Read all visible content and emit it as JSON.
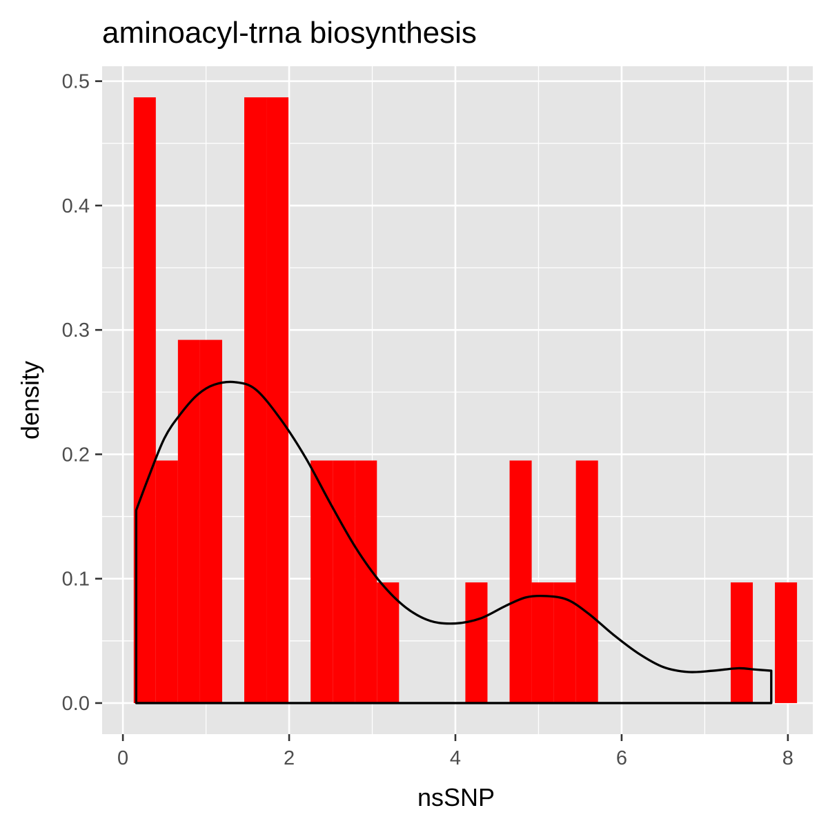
{
  "chart_data": {
    "type": "histogram",
    "title": "aminoacyl-trna biosynthesis",
    "xlabel": "nsSNP",
    "ylabel": "density",
    "xlim": [
      -0.25,
      8.3
    ],
    "ylim": [
      -0.025,
      0.512
    ],
    "x_ticks": [
      "0",
      "2",
      "4",
      "6",
      "8"
    ],
    "y_ticks": [
      "0.0",
      "0.1",
      "0.2",
      "0.3",
      "0.4",
      "0.5"
    ],
    "grid": true,
    "background": "#e5e5e5",
    "bar_fill": "#ff0000",
    "density_line_color": "#000000",
    "histogram": {
      "bin_width": 0.266,
      "bins": [
        {
          "x0": 0.13,
          "x1": 0.396,
          "density": 0.487
        },
        {
          "x0": 0.396,
          "x1": 0.662,
          "density": 0.195
        },
        {
          "x0": 0.662,
          "x1": 0.928,
          "density": 0.292
        },
        {
          "x0": 0.928,
          "x1": 1.194,
          "density": 0.292
        },
        {
          "x0": 1.194,
          "x1": 1.46,
          "density": 0.0
        },
        {
          "x0": 1.46,
          "x1": 1.726,
          "density": 0.487
        },
        {
          "x0": 1.726,
          "x1": 1.992,
          "density": 0.487
        },
        {
          "x0": 1.992,
          "x1": 2.258,
          "density": 0.0
        },
        {
          "x0": 2.258,
          "x1": 2.524,
          "density": 0.195
        },
        {
          "x0": 2.524,
          "x1": 2.79,
          "density": 0.195
        },
        {
          "x0": 2.79,
          "x1": 3.056,
          "density": 0.195
        },
        {
          "x0": 3.056,
          "x1": 3.322,
          "density": 0.097
        },
        {
          "x0": 3.322,
          "x1": 3.588,
          "density": 0.0
        },
        {
          "x0": 3.588,
          "x1": 3.854,
          "density": 0.0
        },
        {
          "x0": 3.854,
          "x1": 4.12,
          "density": 0.0
        },
        {
          "x0": 4.12,
          "x1": 4.386,
          "density": 0.097
        },
        {
          "x0": 4.386,
          "x1": 4.652,
          "density": 0.0
        },
        {
          "x0": 4.652,
          "x1": 4.918,
          "density": 0.195
        },
        {
          "x0": 4.918,
          "x1": 5.184,
          "density": 0.097
        },
        {
          "x0": 5.184,
          "x1": 5.45,
          "density": 0.097
        },
        {
          "x0": 5.45,
          "x1": 5.716,
          "density": 0.195
        },
        {
          "x0": 5.716,
          "x1": 5.982,
          "density": 0.0
        },
        {
          "x0": 5.982,
          "x1": 6.248,
          "density": 0.0
        },
        {
          "x0": 6.248,
          "x1": 6.514,
          "density": 0.0
        },
        {
          "x0": 6.514,
          "x1": 6.78,
          "density": 0.0
        },
        {
          "x0": 6.78,
          "x1": 7.046,
          "density": 0.0
        },
        {
          "x0": 7.046,
          "x1": 7.312,
          "density": 0.0
        },
        {
          "x0": 7.312,
          "x1": 7.578,
          "density": 0.097
        },
        {
          "x0": 7.578,
          "x1": 7.844,
          "density": 0.0
        },
        {
          "x0": 7.844,
          "x1": 8.11,
          "density": 0.097
        }
      ]
    },
    "density_curve": {
      "x": [
        0.16,
        0.3,
        0.5,
        0.7,
        0.9,
        1.1,
        1.35,
        1.6,
        1.9,
        2.2,
        2.5,
        2.8,
        3.1,
        3.4,
        3.7,
        4.0,
        4.3,
        4.6,
        4.85,
        5.1,
        5.35,
        5.6,
        5.9,
        6.2,
        6.5,
        6.8,
        7.1,
        7.4,
        7.6,
        7.8
      ],
      "y": [
        0.155,
        0.18,
        0.213,
        0.233,
        0.248,
        0.256,
        0.258,
        0.252,
        0.228,
        0.197,
        0.16,
        0.125,
        0.097,
        0.077,
        0.066,
        0.064,
        0.068,
        0.078,
        0.085,
        0.086,
        0.083,
        0.072,
        0.055,
        0.04,
        0.029,
        0.025,
        0.026,
        0.028,
        0.027,
        0.026
      ]
    }
  }
}
